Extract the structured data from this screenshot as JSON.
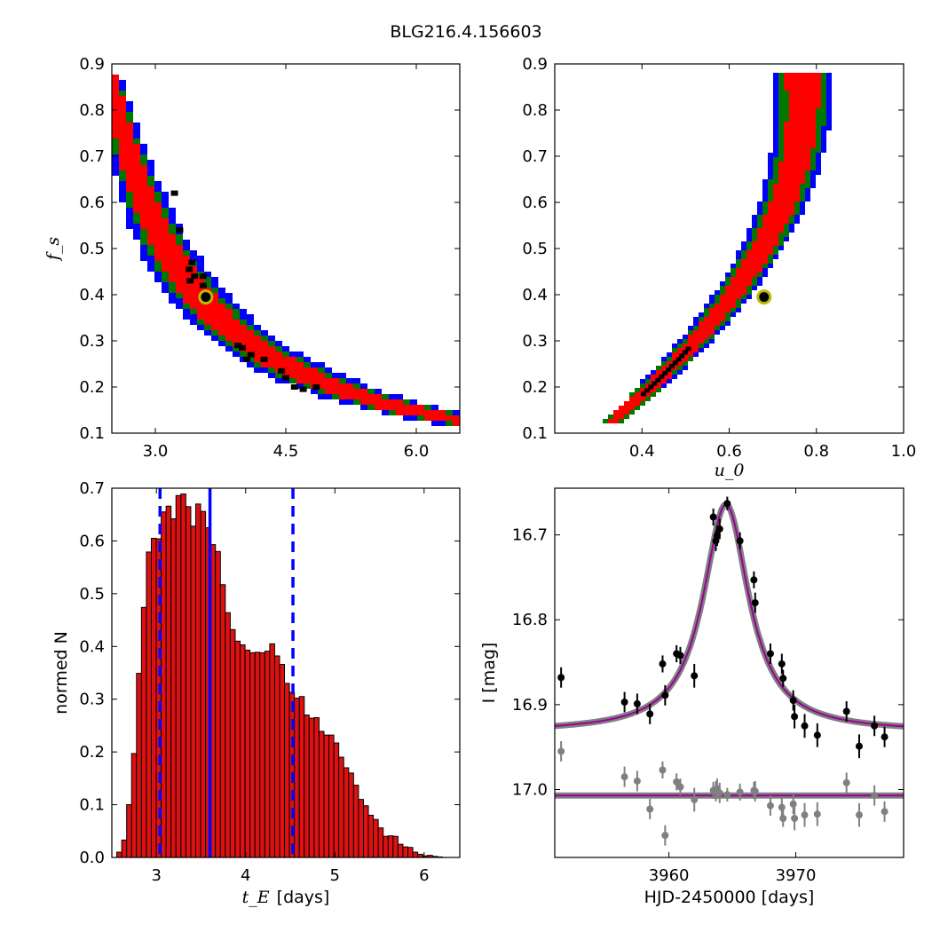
{
  "figure_title": "BLG216.4.156603",
  "colors": {
    "sigma1": "#ff0000",
    "sigma2": "#007700",
    "sigma3": "#0000ff",
    "best": "#000000",
    "marker_edge": "#bbbb00",
    "model": "#990099",
    "hist": "#dd1111",
    "residual": "#808080"
  },
  "chart_data": [
    {
      "id": "ts-vs-fs",
      "type": "heatmap",
      "xlabel": "",
      "ylabel": "f_s",
      "xlim": [
        2.5,
        6.5
      ],
      "ylim": [
        0.1,
        0.9
      ],
      "xticks": [
        "3.0",
        "4.5",
        "6.0"
      ],
      "xtick_values": [
        3.0,
        4.5,
        6.0
      ],
      "yticks": [
        "0.1",
        "0.2",
        "0.3",
        "0.4",
        "0.5",
        "0.6",
        "0.7",
        "0.8",
        "0.9"
      ],
      "ytick_values": [
        0.1,
        0.2,
        0.3,
        0.4,
        0.5,
        0.6,
        0.7,
        0.8,
        0.9
      ],
      "contours": "1/2/3-sigma regions (red/green/blue)",
      "best_fit": {
        "x": 3.58,
        "y": 0.395
      }
    },
    {
      "id": "u0-vs-fs",
      "type": "heatmap",
      "xlabel": "u_0",
      "ylabel": "",
      "xlim": [
        0.2,
        1.0
      ],
      "ylim": [
        0.1,
        0.9
      ],
      "xticks": [
        "0.4",
        "0.6",
        "0.8",
        "1.0"
      ],
      "xtick_values": [
        0.4,
        0.6,
        0.8,
        1.0
      ],
      "yticks": [
        "0.1",
        "0.2",
        "0.3",
        "0.4",
        "0.5",
        "0.6",
        "0.7",
        "0.8",
        "0.9"
      ],
      "ytick_values": [
        0.1,
        0.2,
        0.3,
        0.4,
        0.5,
        0.6,
        0.7,
        0.8,
        0.9
      ],
      "best_fit": {
        "x": 0.68,
        "y": 0.395
      }
    },
    {
      "id": "te-histogram",
      "type": "bar",
      "xlabel": "t_E",
      "xlabel_unit": "[days]",
      "ylabel": "normed N",
      "xlim": [
        2.5,
        6.4
      ],
      "ylim": [
        0.0,
        0.7
      ],
      "xticks": [
        "3",
        "4",
        "5",
        "6"
      ],
      "xtick_values": [
        3,
        4,
        5,
        6
      ],
      "yticks": [
        "0.0",
        "0.1",
        "0.2",
        "0.3",
        "0.4",
        "0.5",
        "0.6",
        "0.7"
      ],
      "ytick_values": [
        0.0,
        0.1,
        0.2,
        0.3,
        0.4,
        0.5,
        0.6,
        0.7
      ],
      "bin_start": 2.5,
      "bin_width": 0.0553,
      "values": [
        0.0,
        0.01,
        0.033,
        0.1,
        0.197,
        0.349,
        0.474,
        0.579,
        0.605,
        0.604,
        0.655,
        0.666,
        0.642,
        0.686,
        0.689,
        0.665,
        0.628,
        0.67,
        0.656,
        0.625,
        0.593,
        0.58,
        0.517,
        0.464,
        0.432,
        0.41,
        0.403,
        0.393,
        0.388,
        0.389,
        0.388,
        0.391,
        0.405,
        0.382,
        0.366,
        0.33,
        0.313,
        0.302,
        0.305,
        0.27,
        0.264,
        0.265,
        0.239,
        0.232,
        0.232,
        0.217,
        0.19,
        0.17,
        0.16,
        0.137,
        0.11,
        0.098,
        0.08,
        0.072,
        0.056,
        0.04,
        0.041,
        0.04,
        0.025,
        0.02,
        0.019,
        0.01,
        0.006,
        0.003,
        0.004,
        0.002,
        0.001,
        0.0,
        0.0,
        0.0
      ],
      "median": 3.6,
      "interval": [
        3.04,
        4.53
      ]
    },
    {
      "id": "lightcurve",
      "type": "scatter",
      "xlabel": "HJD-2450000 [days]",
      "ylabel": "I [mag]",
      "xlim": [
        3951.0,
        3978.5
      ],
      "ylim": [
        17.08,
        16.645
      ],
      "xticks": [
        "3960",
        "3970"
      ],
      "xtick_values": [
        3960,
        3970
      ],
      "yticks": [
        "16.7",
        "16.8",
        "16.9",
        "17.0"
      ],
      "ytick_values": [
        16.7,
        16.8,
        16.9,
        17.0
      ],
      "model": {
        "t0": 3964.5,
        "baseline": 16.932,
        "peak": 16.664,
        "width": 2.2
      },
      "residual_offset": 17.007,
      "series": [
        {
          "role": "data",
          "x": [
            3951.5,
            3956.5,
            3957.5,
            3958.5,
            3959.5,
            3959.7,
            3960.6,
            3960.9,
            3962.0,
            3963.5,
            3963.7,
            3963.8,
            3964.0,
            3964.6,
            3965.6,
            3966.7,
            3966.8,
            3968.0,
            3968.9,
            3969.0,
            3969.8,
            3969.9,
            3970.7,
            3971.7,
            3974.0,
            3975.0,
            3976.2,
            3977.0
          ],
          "y": [
            16.868,
            16.897,
            16.899,
            16.911,
            16.852,
            16.889,
            16.84,
            16.842,
            16.866,
            16.679,
            16.707,
            16.701,
            16.693,
            16.663,
            16.707,
            16.753,
            16.78,
            16.84,
            16.852,
            16.869,
            16.895,
            16.914,
            16.925,
            16.936,
            16.908,
            16.949,
            16.925,
            16.938
          ],
          "yerr": [
            0.012,
            0.012,
            0.012,
            0.012,
            0.01,
            0.012,
            0.01,
            0.01,
            0.014,
            0.01,
            0.012,
            0.012,
            0.012,
            0.008,
            0.01,
            0.01,
            0.012,
            0.012,
            0.012,
            0.01,
            0.012,
            0.014,
            0.014,
            0.014,
            0.012,
            0.014,
            0.012,
            0.012
          ]
        },
        {
          "role": "residuals",
          "x": [
            3951.5,
            3956.5,
            3957.5,
            3958.5,
            3959.5,
            3959.7,
            3960.6,
            3960.9,
            3962.0,
            3963.5,
            3963.7,
            3963.8,
            3964.0,
            3964.6,
            3965.6,
            3966.7,
            3966.8,
            3968.0,
            3968.9,
            3969.0,
            3969.8,
            3969.9,
            3970.7,
            3971.7,
            3974.0,
            3975.0,
            3976.2,
            3977.0
          ],
          "y": [
            16.955,
            16.985,
            16.99,
            17.023,
            16.977,
            17.054,
            16.991,
            16.997,
            17.012,
            17.001,
            17.002,
            16.999,
            17.004,
            17.006,
            17.003,
            17.001,
            17.002,
            17.019,
            17.021,
            17.034,
            17.017,
            17.034,
            17.03,
            17.029,
            16.992,
            17.03,
            17.007,
            17.026
          ],
          "yerr": [
            0.012,
            0.012,
            0.012,
            0.012,
            0.01,
            0.012,
            0.01,
            0.01,
            0.014,
            0.01,
            0.012,
            0.012,
            0.012,
            0.008,
            0.01,
            0.01,
            0.012,
            0.012,
            0.012,
            0.01,
            0.012,
            0.014,
            0.014,
            0.014,
            0.012,
            0.014,
            0.012,
            0.012
          ]
        }
      ]
    }
  ]
}
